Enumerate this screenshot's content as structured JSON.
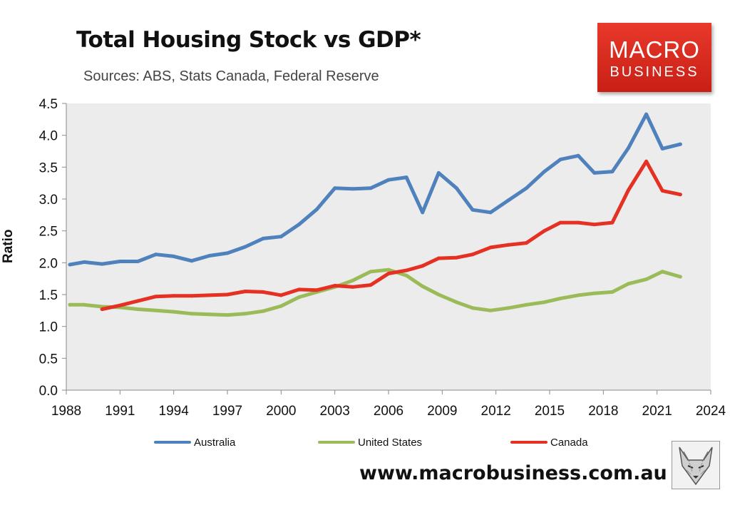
{
  "header": {
    "title": "Total Housing Stock vs GDP*",
    "subtitle": "Sources: ABS, Stats Canada, Federal Reserve"
  },
  "logo": {
    "line1": "MACRO",
    "line2": "BUSINESS",
    "color": "#d7291f"
  },
  "footer": {
    "url": "www.macrobusiness.com.au",
    "icon": "fox-icon"
  },
  "chart_data": {
    "type": "line",
    "title": "Total Housing Stock vs GDP*",
    "xlabel": "",
    "ylabel": "Ratio",
    "xlim": [
      1988,
      2024
    ],
    "ylim": [
      0,
      4.5
    ],
    "x_ticks": [
      "1988",
      "1991",
      "1994",
      "1997",
      "2000",
      "2003",
      "2006",
      "2009",
      "2012",
      "2015",
      "2018",
      "2021",
      "2024"
    ],
    "y_ticks": [
      "0.0",
      "0.5",
      "1.0",
      "1.5",
      "2.0",
      "2.5",
      "3.0",
      "3.5",
      "4.0",
      "4.5"
    ],
    "grid": false,
    "plot_background": "#ececec",
    "legend_position": "bottom",
    "series": [
      {
        "name": "Australia",
        "color": "#4f81bd",
        "points": [
          [
            1988.2,
            1.97
          ],
          [
            1989,
            2.01
          ],
          [
            1990,
            1.98
          ],
          [
            1991,
            2.02
          ],
          [
            1992,
            2.02
          ],
          [
            1993,
            2.13
          ],
          [
            1994,
            2.1
          ],
          [
            1995,
            2.03
          ],
          [
            1996,
            2.11
          ],
          [
            1997,
            2.15
          ],
          [
            1998,
            2.25
          ],
          [
            1999,
            2.38
          ],
          [
            2000,
            2.41
          ],
          [
            2001,
            2.6
          ],
          [
            2002,
            2.84
          ],
          [
            2003,
            3.17
          ],
          [
            2004,
            3.16
          ],
          [
            2005,
            3.17
          ],
          [
            2006,
            3.3
          ],
          [
            2007,
            3.34
          ],
          [
            2007.9,
            2.79
          ],
          [
            2008.8,
            3.41
          ],
          [
            2009.8,
            3.17
          ],
          [
            2010.7,
            2.83
          ],
          [
            2011.7,
            2.79
          ],
          [
            2012.7,
            2.98
          ],
          [
            2013.7,
            3.17
          ],
          [
            2014.7,
            3.43
          ],
          [
            2015.6,
            3.62
          ],
          [
            2016.6,
            3.68
          ],
          [
            2017.5,
            3.41
          ],
          [
            2018.5,
            3.43
          ],
          [
            2019.4,
            3.8
          ],
          [
            2020.4,
            4.33
          ],
          [
            2021.3,
            3.79
          ],
          [
            2022.3,
            3.86
          ]
        ]
      },
      {
        "name": "United States",
        "color": "#9bbb59",
        "points": [
          [
            1988.2,
            1.34
          ],
          [
            1989,
            1.34
          ],
          [
            1990,
            1.31
          ],
          [
            1991,
            1.3
          ],
          [
            1992,
            1.27
          ],
          [
            1993,
            1.25
          ],
          [
            1994,
            1.23
          ],
          [
            1995,
            1.2
          ],
          [
            1996,
            1.19
          ],
          [
            1997,
            1.18
          ],
          [
            1998,
            1.2
          ],
          [
            1999,
            1.24
          ],
          [
            2000,
            1.32
          ],
          [
            2001,
            1.46
          ],
          [
            2002,
            1.54
          ],
          [
            2003,
            1.62
          ],
          [
            2004,
            1.72
          ],
          [
            2005,
            1.86
          ],
          [
            2006,
            1.89
          ],
          [
            2007,
            1.8
          ],
          [
            2007.9,
            1.63
          ],
          [
            2008.8,
            1.5
          ],
          [
            2009.8,
            1.38
          ],
          [
            2010.7,
            1.29
          ],
          [
            2011.7,
            1.25
          ],
          [
            2012.7,
            1.29
          ],
          [
            2013.7,
            1.34
          ],
          [
            2014.7,
            1.38
          ],
          [
            2015.6,
            1.44
          ],
          [
            2016.6,
            1.49
          ],
          [
            2017.5,
            1.52
          ],
          [
            2018.5,
            1.54
          ],
          [
            2019.4,
            1.67
          ],
          [
            2020.4,
            1.74
          ],
          [
            2021.3,
            1.86
          ],
          [
            2022.3,
            1.78
          ]
        ]
      },
      {
        "name": "Canada",
        "color": "#e53124",
        "points": [
          [
            1990,
            1.27
          ],
          [
            1991,
            1.33
          ],
          [
            1992,
            1.4
          ],
          [
            1993,
            1.47
          ],
          [
            1994,
            1.48
          ],
          [
            1995,
            1.48
          ],
          [
            1996,
            1.49
          ],
          [
            1997,
            1.5
          ],
          [
            1998,
            1.55
          ],
          [
            1999,
            1.54
          ],
          [
            2000,
            1.49
          ],
          [
            2001,
            1.58
          ],
          [
            2002,
            1.57
          ],
          [
            2003,
            1.64
          ],
          [
            2004,
            1.62
          ],
          [
            2005,
            1.65
          ],
          [
            2006,
            1.83
          ],
          [
            2007,
            1.88
          ],
          [
            2007.9,
            1.95
          ],
          [
            2008.8,
            2.07
          ],
          [
            2009.8,
            2.08
          ],
          [
            2010.7,
            2.13
          ],
          [
            2011.7,
            2.24
          ],
          [
            2012.7,
            2.28
          ],
          [
            2013.7,
            2.31
          ],
          [
            2014.7,
            2.5
          ],
          [
            2015.6,
            2.63
          ],
          [
            2016.6,
            2.63
          ],
          [
            2017.5,
            2.6
          ],
          [
            2018.5,
            2.63
          ],
          [
            2019.4,
            3.14
          ],
          [
            2020.4,
            3.59
          ],
          [
            2021.3,
            3.13
          ],
          [
            2022.3,
            3.07
          ]
        ]
      }
    ]
  }
}
